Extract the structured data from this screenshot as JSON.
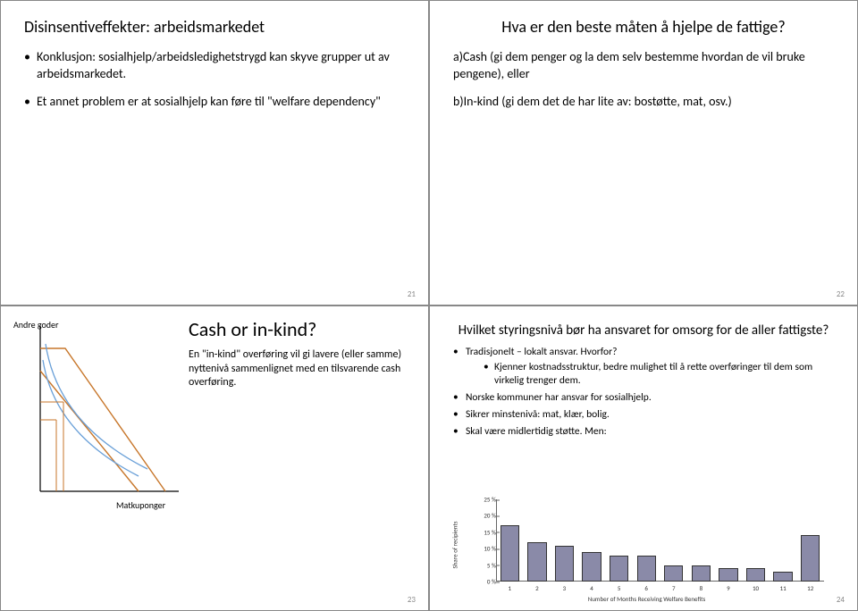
{
  "slide21": {
    "num": "21",
    "title": "Disinsentiveffekter: arbeidsmarkedet",
    "b1": "Konklusjon: sosialhjelp/arbeidsledighetstrygd kan skyve grupper ut av arbeidsmarkedet.",
    "b2": "Et annet problem er at sosialhjelp kan føre til \"welfare dependency\""
  },
  "slide22": {
    "num": "22",
    "title": "Hva er den beste måten å hjelpe de fattige?",
    "a": "a)Cash (gi dem penger og la dem selv bestemme hvordan de vil bruke pengene), eller",
    "b": "b)In-kind (gi dem det de har lite av: bostøtte, mat, osv.)"
  },
  "slide23": {
    "num": "23",
    "ylabel": "Andre goder",
    "xlabel": "Matkuponger",
    "heading": "Cash or in-kind?",
    "body": "En \"in-kind\" overføring vil gi lavere (eller samme) nyttenivå sammenlignet med en tilsvarende cash overføring.",
    "graph": {
      "axis_color": "#000000",
      "budget1_color": "#c7762a",
      "budget2_color": "#c7762a",
      "indiff_colors": [
        "#6aa0d8",
        "#6aa0d8"
      ],
      "ref_line_color": "#c7762a"
    }
  },
  "slide24": {
    "num": "24",
    "title": "Hvilket styringsnivå bør ha ansvaret for omsorg for de aller fattigste?",
    "b1": "Tradisjonelt – lokalt ansvar. Hvorfor?",
    "b1s1": "Kjenner kostnadsstruktur, bedre mulighet til å rette overføringer til dem som virkelig trenger dem.",
    "b2": "Norske kommuner har ansvar for sosialhjelp.",
    "b3": "Sikrer minstenivå: mat, klær, bolig.",
    "b4": "Skal være midlertidig støtte. Men:",
    "chart": {
      "ylabel": "Share of recipients",
      "xlabel": "Number of Months Receiving Welfare Benefits",
      "bar_color": "#8a8aa8",
      "bar_border": "#333333",
      "grid_color": "#666666",
      "yticks": [
        "0 %",
        "5 %",
        "10 %",
        "15 %",
        "20 %",
        "25 %"
      ],
      "ymax": 25,
      "categories": [
        "1",
        "2",
        "3",
        "4",
        "5",
        "6",
        "7",
        "8",
        "9",
        "10",
        "11",
        "12"
      ],
      "values": [
        17,
        12,
        11,
        9,
        8,
        8,
        5,
        5,
        4,
        4,
        3,
        14
      ]
    }
  }
}
